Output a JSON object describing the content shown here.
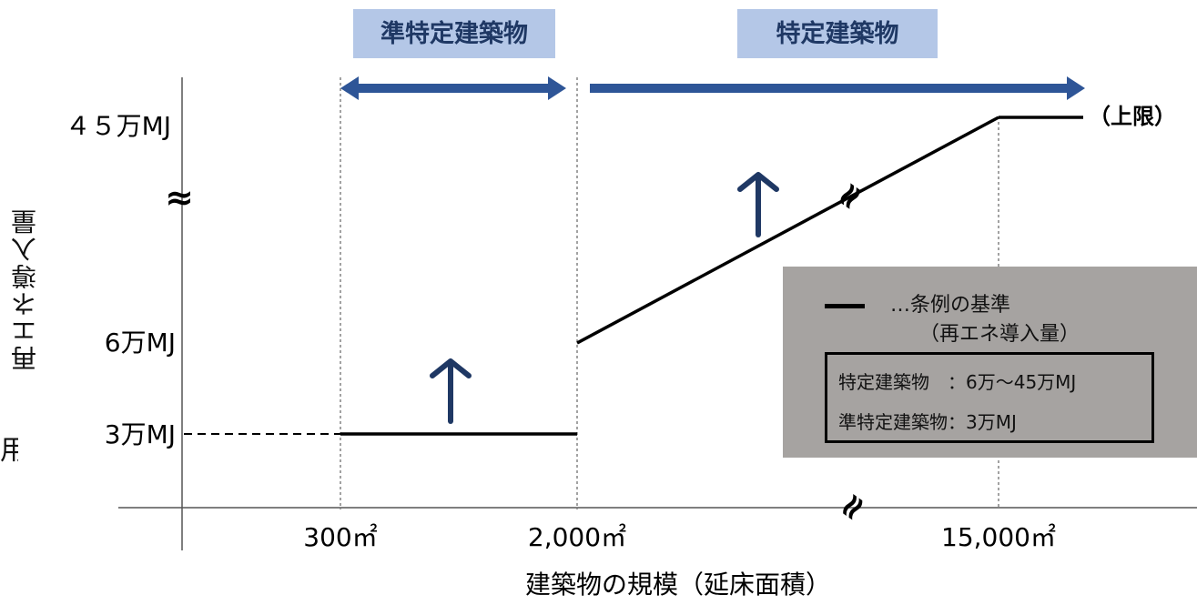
{
  "chart_data": {
    "type": "line",
    "xlabel": "建築物の規模（延床面積）",
    "ylabel": "再エネ導入量",
    "x_ticks": [
      "300㎡",
      "2,000㎡",
      "15,000㎡"
    ],
    "y_ticks": [
      "3万MJ",
      "6万MJ",
      "４５万MJ"
    ],
    "y_break_symbol": "≈",
    "cut_left_text": "用",
    "categories": [
      "準特定建築物",
      "特定建築物"
    ],
    "segments": [
      {
        "name": "準特定建築物",
        "x": [
          "300㎡",
          "2,000㎡"
        ],
        "y": [
          3,
          3
        ],
        "unit": "万MJ"
      },
      {
        "name": "特定建築物",
        "x": [
          "2,000㎡",
          "15,000㎡"
        ],
        "y": [
          6,
          45
        ],
        "unit": "万MJ"
      },
      {
        "name": "上限",
        "x": [
          "15,000㎡",
          ""
        ],
        "y": [
          45,
          45
        ],
        "unit": "万MJ"
      }
    ],
    "cap_label": "（上限）",
    "legend": {
      "line_label": "…条例の基準",
      "line_label_sub": "（再エネ導入量）",
      "rows": [
        "特定建築物　：6万～45万MJ",
        "準特定建築物：3万MJ"
      ]
    }
  },
  "colors": {
    "arrow": "#2e5597",
    "up_arrow": "#1f3864",
    "label_bg": "#b4c7e7",
    "label_text": "#1f3864",
    "legend_bg": "#a6a3a1",
    "line": "#000000"
  }
}
